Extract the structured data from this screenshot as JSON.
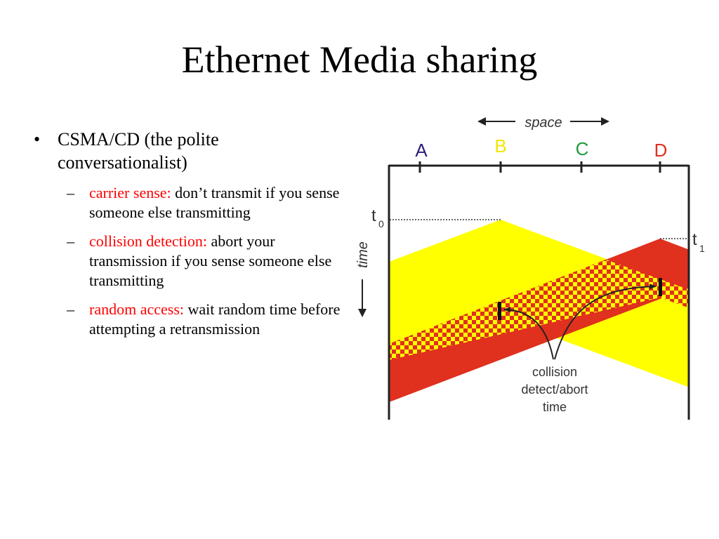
{
  "slide": {
    "title": "Ethernet Media sharing",
    "bullet": "CSMA/CD (the polite conversationalist)",
    "sub_items": [
      {
        "term": "carrier sense:",
        "text": " don’t transmit if you sense someone else transmitting"
      },
      {
        "term": "collision detection:",
        "text": " abort your transmission if you sense someone else transmitting"
      },
      {
        "term": "random access:",
        "text": " wait random time before attempting a retransmission"
      }
    ]
  },
  "diagram": {
    "space_label": "space",
    "time_label": "time",
    "nodes": [
      "A",
      "B",
      "C",
      "D"
    ],
    "node_colors": [
      "#2b1f7a",
      "#f2e600",
      "#1f9a3c",
      "#e0301e"
    ],
    "t0": {
      "base": "t",
      "sub": "0"
    },
    "t1": {
      "base": "t",
      "sub": "1"
    },
    "collision_label": [
      "collision",
      "detect/abort",
      "time"
    ],
    "colors": {
      "yellow": "#ffff00",
      "red": "#e0301e",
      "axis": "#222222"
    }
  }
}
